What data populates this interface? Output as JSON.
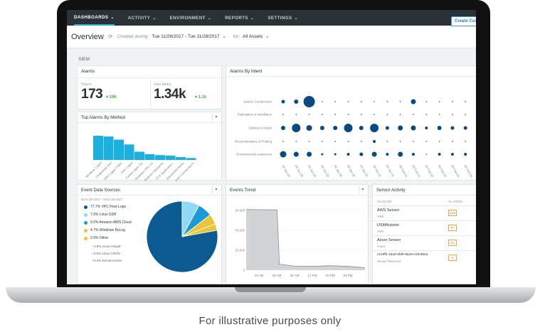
{
  "nav": {
    "items": [
      {
        "label": "DASHBOARDS"
      },
      {
        "label": "ACTIVITY"
      },
      {
        "label": "ENVIRONMENT"
      },
      {
        "label": "REPORTS"
      },
      {
        "label": "SETTINGS"
      }
    ]
  },
  "toolbar": {
    "title": "Overview",
    "created_label": "Created during:",
    "date_range": "Tue 11/28/2017 - Tue 11/28/2017",
    "for_label": "for:",
    "assets": "All Assets",
    "create_button": "Create Cus"
  },
  "section_label": "SIEM",
  "alarms": {
    "title": "Alarms",
    "today_label": "TODAY",
    "today_value": "173",
    "today_delta": "196",
    "week_label": "THIS WEEK",
    "week_value": "1.34k",
    "week_delta": "1.1k"
  },
  "top_alarms": {
    "title": "Top Alarms By Method",
    "chart_data": {
      "type": "bar",
      "categories": [
        "Windows Logon",
        "Credentials Stol.",
        "SSH Logon Failur.",
        "User Logon",
        "Failed Logon Su.",
        "Malicious SSL Ce.",
        "Malware Beaconin.",
        "DTX Application...",
        "Successful Authe.",
        "User Connected Fr."
      ],
      "values": [
        100,
        97,
        84,
        64,
        34,
        24,
        20,
        18,
        12,
        8
      ]
    }
  },
  "alarms_by_intent": {
    "title": "Alarms By Intent",
    "rows": [
      "System Compromise",
      "Exploitation & Installation",
      "Delivery & Attack",
      "Reconnaissance & Probing",
      "Environmental Awareness"
    ],
    "x_labels": [
      "04 Jan 26",
      "04 Jan 28",
      "04 Jan 29",
      "04 Jan 29",
      "04 Jan 30",
      "04 Jan 30",
      "04 Jan 31",
      "04 Jan 31",
      "04 Jan 31",
      "04 Feb 01",
      "04 Feb 01",
      "04 Feb 02",
      "04 Feb 02",
      "04 Feb 03",
      "04 Feb 03"
    ]
  },
  "event_sources": {
    "title": "Event Data Sources",
    "date_range": "NOV 28 2017 - NOV 28 2017",
    "legend": [
      {
        "label": "77.7% VPC Flow Logs",
        "color": "#0b5b92"
      },
      {
        "label": "7.9% Linux SSH",
        "color": "#8fd9f5"
      },
      {
        "label": "6.5% Amazon AWS Cloud",
        "color": "#1b9ad6"
      },
      {
        "label": "4.7% Windows NxLog",
        "color": "#e8c53a"
      },
      {
        "label": "2.9% Other",
        "color": "#e8c53a"
      }
    ],
    "sub_items": [
      "--1.8% Azure Insight",
      "--0.5% Linux CRON",
      "--0.2% ServerAccess"
    ],
    "chart_data": {
      "type": "pie",
      "values": [
        77.7,
        7.9,
        6.5,
        4.7,
        2.9
      ],
      "labels": [
        "VPC Flow Logs",
        "Linux SSH",
        "Amazon AWS Cloud",
        "Windows NxLog",
        "Other"
      ]
    }
  },
  "events_trend": {
    "title": "Events Trend",
    "y_ticks": [
      "60,000",
      "40,000",
      "20,000",
      "0"
    ],
    "x_ticks": [
      "03 AM",
      "06 AM",
      "09 AM",
      "12 PM",
      "03 PM",
      "06 PM"
    ],
    "chart_data": {
      "type": "area",
      "x": [
        "12 AM",
        "03 AM",
        "06 AM",
        "09 AM",
        "12 PM",
        "03 PM",
        "06 PM",
        "09 PM"
      ],
      "values": [
        61000,
        60000,
        5000,
        4000,
        3500,
        4200,
        3800,
        2500
      ],
      "ylim": [
        0,
        65000
      ]
    }
  },
  "sensor_activity": {
    "title": "Sensor Activity",
    "col_sensor": "SENSOR",
    "col_alarms": "ALARMS",
    "rows": [
      {
        "name": "AWS Sensor",
        "sub": "AWS",
        "alarms": "135"
      },
      {
        "name": "USMAntoine",
        "sub": "AWS",
        "alarms": "87"
      },
      {
        "name": "Azure Sensor",
        "sub": "Azure",
        "alarms": "24"
      },
      {
        "name": "c1f4ffb-15ad-4bf6-9a29-e1fe352a",
        "sub": "Sensor Removed",
        "alarms": "2"
      }
    ]
  },
  "caption": "For illustrative purposes only",
  "colors": {
    "nav_bg": "#2b3137",
    "accent": "#2ea6d6",
    "bar": "#1bb0dd",
    "bubble": "#0b4a80",
    "delta": "#4caf50",
    "badge": "#f5a04a"
  }
}
